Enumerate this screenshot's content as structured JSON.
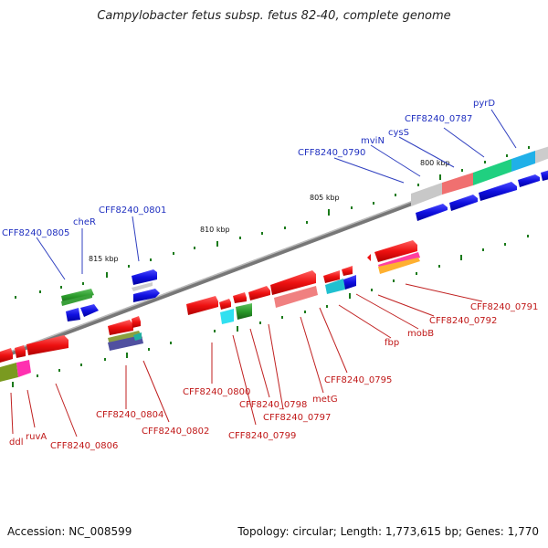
{
  "title": "Campylobacter fetus subsp. fetus 82-40, complete genome",
  "footer": {
    "accession": "Accession: NC_008599",
    "summary": "Topology: circular; Length: 1,773,615 bp; Genes: 1,770"
  },
  "scale_labels": [
    "800 kbp",
    "805 kbp",
    "810 kbp",
    "815 kbp"
  ],
  "forward_labels": [
    "pyrD",
    "CFF8240_0787",
    "cysS",
    "mviN",
    "CFF8240_0790",
    "CFF8240_0801",
    "cheR",
    "CFF8240_0805"
  ],
  "reverse_labels": [
    "CFF8240_0791",
    "CFF8240_0792",
    "mobB",
    "fbp",
    "CFF8240_0795",
    "metG",
    "CFF8240_0797",
    "CFF8240_0798",
    "CFF8240_0799",
    "CFF8240_0800",
    "CFF8240_0802",
    "CFF8240_0804",
    "CFF8240_0806",
    "ruvA",
    "ddl"
  ],
  "colors": {
    "backbone": "#888888",
    "forward_cds": "#1010e0",
    "reverse_cds": "#ee1111",
    "label_forward": "#2030c0",
    "label_reverse": "#c01818",
    "gc_tick": "#1a7a1a"
  }
}
